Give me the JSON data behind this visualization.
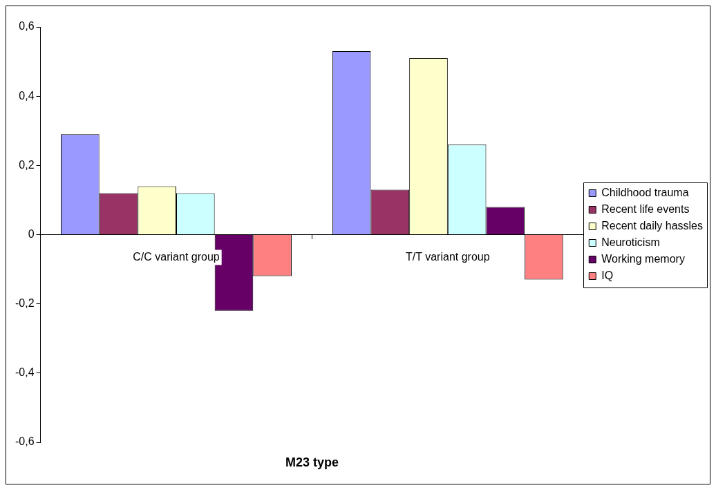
{
  "chart_data": {
    "type": "bar",
    "xlabel": "M23 type",
    "categories": [
      "C/C variant group",
      "T/T variant group"
    ],
    "series": [
      {
        "name": "Childhood trauma",
        "color": "#9999ff",
        "values": [
          0.29,
          0.53
        ]
      },
      {
        "name": "Recent life events",
        "color": "#993366",
        "values": [
          0.12,
          0.13
        ]
      },
      {
        "name": "Recent daily hassles",
        "color": "#ffffcc",
        "values": [
          0.14,
          0.51
        ]
      },
      {
        "name": "Neuroticism",
        "color": "#ccffff",
        "values": [
          0.12,
          0.26
        ]
      },
      {
        "name": "Working memory",
        "color": "#660066",
        "values": [
          -0.22,
          0.08
        ]
      },
      {
        "name": "IQ",
        "color": "#ff8080",
        "values": [
          -0.12,
          -0.13
        ]
      }
    ],
    "ylim": [
      -0.6,
      0.6
    ],
    "yticks": [
      {
        "value": -0.6,
        "label": "-0,6"
      },
      {
        "value": -0.4,
        "label": "-0,4"
      },
      {
        "value": -0.2,
        "label": "-0,2"
      },
      0,
      {
        "value": 0.2,
        "label": "0,2"
      },
      {
        "value": 0.4,
        "label": "0,4"
      },
      {
        "value": 0.6,
        "label": "0,6"
      }
    ],
    "grid": false,
    "legend": "right"
  }
}
